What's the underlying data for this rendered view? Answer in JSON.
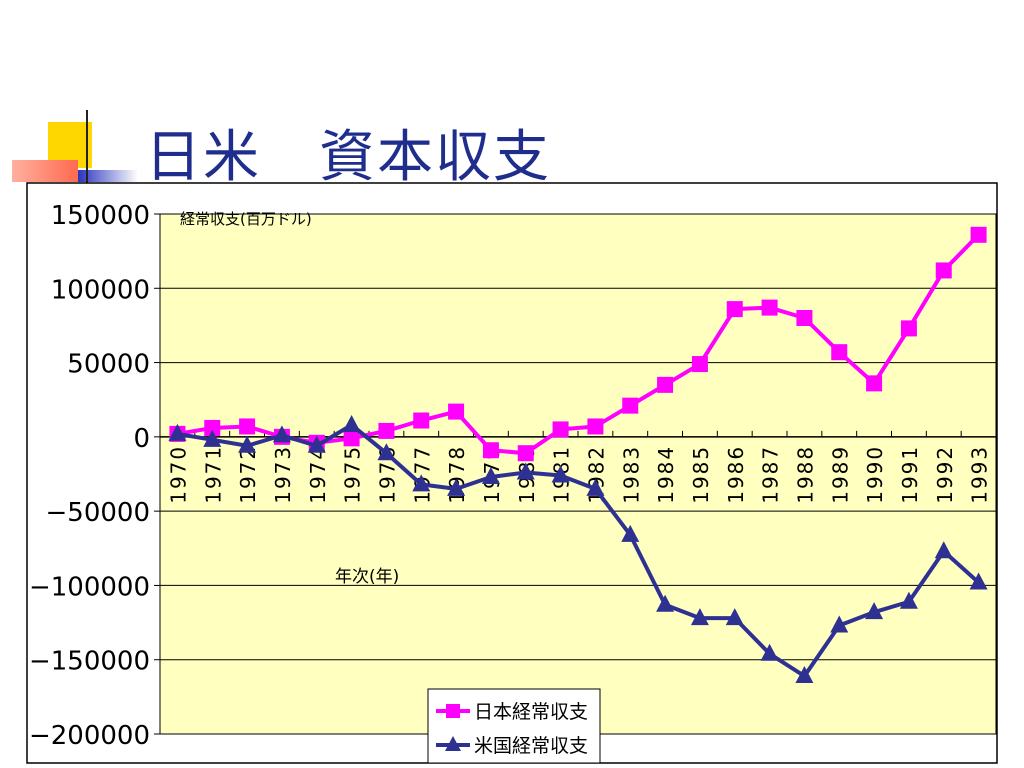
{
  "slide": {
    "title": "日米　資本収支"
  },
  "chart_data": {
    "type": "line",
    "ylabel": "経常収支(百万ドル)",
    "xlabel": "年次(年)",
    "ylim": [
      -200000,
      150000
    ],
    "yticks": [
      150000,
      100000,
      50000,
      0,
      -50000,
      -100000,
      -150000,
      -200000
    ],
    "grid": true,
    "legend": "bottom-center",
    "categories": [
      "1970",
      "1971",
      "1972",
      "1973",
      "1974",
      "1975",
      "1976",
      "1977",
      "1978",
      "1979",
      "1980",
      "1981",
      "1982",
      "1983",
      "1984",
      "1985",
      "1986",
      "1987",
      "1988",
      "1989",
      "1990",
      "1991",
      "1992",
      "1993"
    ],
    "series": [
      {
        "name": "日本経常収支",
        "marker": "square",
        "color": "#ff00ff",
        "values": [
          2000,
          6000,
          7000,
          0,
          -4000,
          -1000,
          4000,
          11000,
          17000,
          -9000,
          -11000,
          5000,
          7000,
          21000,
          35000,
          49000,
          86000,
          87000,
          80000,
          57000,
          36000,
          73000,
          112000,
          136000
        ]
      },
      {
        "name": "米国経常収支",
        "marker": "triangle",
        "color": "#2e3192",
        "values": [
          2000,
          -2000,
          -6000,
          1000,
          -6000,
          8000,
          -11000,
          -32000,
          -35000,
          -27000,
          -24000,
          -26000,
          -35000,
          -66000,
          -113000,
          -122000,
          -122000,
          -146000,
          -161000,
          -127000,
          -118000,
          -111000,
          -77000,
          -98000
        ]
      }
    ]
  }
}
